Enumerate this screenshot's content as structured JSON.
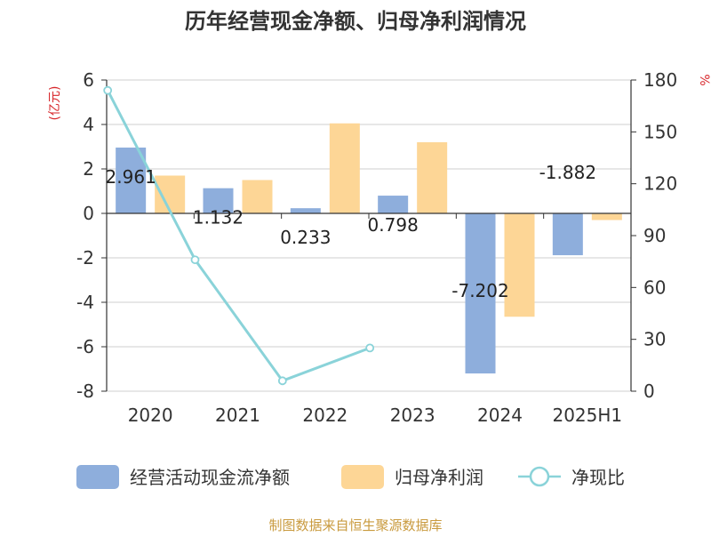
{
  "chart_data": {
    "type": "bar",
    "title": "历年经营现金净额、归母净利润情况",
    "categories": [
      "2020",
      "2021",
      "2022",
      "2023",
      "2024",
      "2025H1"
    ],
    "left_axis": {
      "unit": "(亿元)",
      "range": [
        -8,
        6
      ],
      "ticks": [
        "6",
        "4",
        "2",
        "0",
        "-2",
        "-4",
        "-6",
        "-8"
      ]
    },
    "right_axis": {
      "unit": "%",
      "range": [
        0,
        180
      ],
      "ticks": [
        "180",
        "150",
        "120",
        "90",
        "60",
        "30",
        "0"
      ]
    },
    "grid": true,
    "legend_position": "bottom",
    "series": [
      {
        "name": "经营活动现金流净额",
        "type": "bar",
        "axis": "left",
        "color": "#8eaedc",
        "values": [
          2.961,
          1.132,
          0.233,
          0.798,
          -7.202,
          -1.882
        ],
        "labels": [
          "2.961",
          "1.132",
          "0.233",
          "0.798",
          "-7.202",
          "-1.882"
        ]
      },
      {
        "name": "归母净利润",
        "type": "bar",
        "axis": "left",
        "color": "#fdd696",
        "values": [
          1.7,
          1.5,
          4.05,
          3.2,
          -4.65,
          -0.3
        ]
      },
      {
        "name": "净现比",
        "type": "line",
        "axis": "right",
        "color": "#8ad3d9",
        "values": [
          174,
          76,
          6,
          25,
          null,
          null
        ]
      }
    ],
    "source": "制图数据来自恒生聚源数据库"
  }
}
